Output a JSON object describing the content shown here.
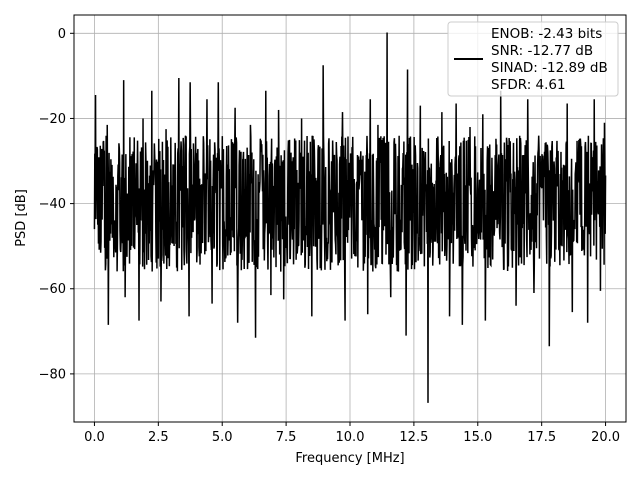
{
  "chart_data": {
    "type": "line",
    "title": "",
    "xlabel": "Frequency [MHz]",
    "ylabel": "PSD [dB]",
    "xlim": [
      -0.8,
      20.8
    ],
    "ylim": [
      -91.3,
      4.3
    ],
    "xticks": [
      0.0,
      2.5,
      5.0,
      7.5,
      10.0,
      12.5,
      15.0,
      17.5,
      20.0
    ],
    "xtick_labels": [
      "0.0",
      "2.5",
      "5.0",
      "7.5",
      "10.0",
      "12.5",
      "15.0",
      "17.5",
      "20.0"
    ],
    "yticks": [
      0,
      -20,
      -40,
      -60,
      -80
    ],
    "ytick_labels": [
      "0",
      "−20",
      "−40",
      "−60",
      "−80"
    ],
    "grid": true,
    "legend_position": "top-right",
    "series_color": "#000000",
    "noise": {
      "x_range": [
        0.0,
        20.0
      ],
      "mean": -40,
      "typical_low": -52,
      "typical_high": -28,
      "floor_at_zero": -46
    },
    "peaks": [
      {
        "x": 11.45,
        "y": 0.2
      },
      {
        "x": 8.95,
        "y": -7.5
      },
      {
        "x": 12.25,
        "y": -8.5
      },
      {
        "x": 3.3,
        "y": -10.5
      },
      {
        "x": 1.15,
        "y": -11.0
      },
      {
        "x": 3.75,
        "y": -11.5
      },
      {
        "x": 4.85,
        "y": -11.5
      },
      {
        "x": 2.25,
        "y": -13.5
      },
      {
        "x": 6.7,
        "y": -13.5
      },
      {
        "x": 15.9,
        "y": -13.5
      },
      {
        "x": 0.05,
        "y": -14.5
      },
      {
        "x": 4.4,
        "y": -15.5
      },
      {
        "x": 10.8,
        "y": -15.5
      },
      {
        "x": 16.95,
        "y": -15.5
      },
      {
        "x": 19.55,
        "y": -15.5
      },
      {
        "x": 14.15,
        "y": -16.5
      },
      {
        "x": 18.5,
        "y": -16.5
      },
      {
        "x": 12.75,
        "y": -17.0
      },
      {
        "x": 5.5,
        "y": -17.5
      },
      {
        "x": 7.2,
        "y": -18.0
      },
      {
        "x": 9.7,
        "y": -18.5
      },
      {
        "x": 13.6,
        "y": -18.5
      },
      {
        "x": 15.2,
        "y": -19.0
      },
      {
        "x": 17.8,
        "y": -19.5
      },
      {
        "x": 1.9,
        "y": -20.0
      },
      {
        "x": 8.1,
        "y": -20.0
      },
      {
        "x": 19.95,
        "y": -21.0
      },
      {
        "x": 0.5,
        "y": -21.5
      },
      {
        "x": 6.1,
        "y": -21.5
      },
      {
        "x": 11.1,
        "y": -21.5
      },
      {
        "x": 14.7,
        "y": -22.0
      },
      {
        "x": 2.8,
        "y": -22.5
      }
    ],
    "troughs": [
      {
        "x": 13.05,
        "y": -86.8
      },
      {
        "x": 6.3,
        "y": -71.5
      },
      {
        "x": 12.2,
        "y": -71.0
      },
      {
        "x": 0.55,
        "y": -68.5
      },
      {
        "x": 14.4,
        "y": -68.5
      },
      {
        "x": 19.3,
        "y": -68.0
      },
      {
        "x": 17.8,
        "y": -73.5
      },
      {
        "x": 1.75,
        "y": -67.5
      },
      {
        "x": 5.6,
        "y": -68.0
      },
      {
        "x": 9.8,
        "y": -67.5
      },
      {
        "x": 15.3,
        "y": -67.5
      },
      {
        "x": 3.7,
        "y": -66.5
      },
      {
        "x": 8.5,
        "y": -66.5
      },
      {
        "x": 10.7,
        "y": -66.0
      },
      {
        "x": 18.7,
        "y": -65.5
      },
      {
        "x": 16.5,
        "y": -64.0
      },
      {
        "x": 4.6,
        "y": -63.5
      },
      {
        "x": 2.6,
        "y": -63.0
      },
      {
        "x": 7.4,
        "y": -62.5
      },
      {
        "x": 11.6,
        "y": -62.0
      },
      {
        "x": 13.9,
        "y": -66.5
      },
      {
        "x": 1.2,
        "y": -62.0
      },
      {
        "x": 6.9,
        "y": -61.5
      },
      {
        "x": 17.2,
        "y": -61.0
      },
      {
        "x": 19.8,
        "y": -60.5
      }
    ]
  },
  "legend": {
    "lines": [
      "ENOB: -2.43 bits",
      "SNR: -12.77 dB",
      "SINAD: -12.89 dB",
      "SFDR: 4.61"
    ]
  }
}
